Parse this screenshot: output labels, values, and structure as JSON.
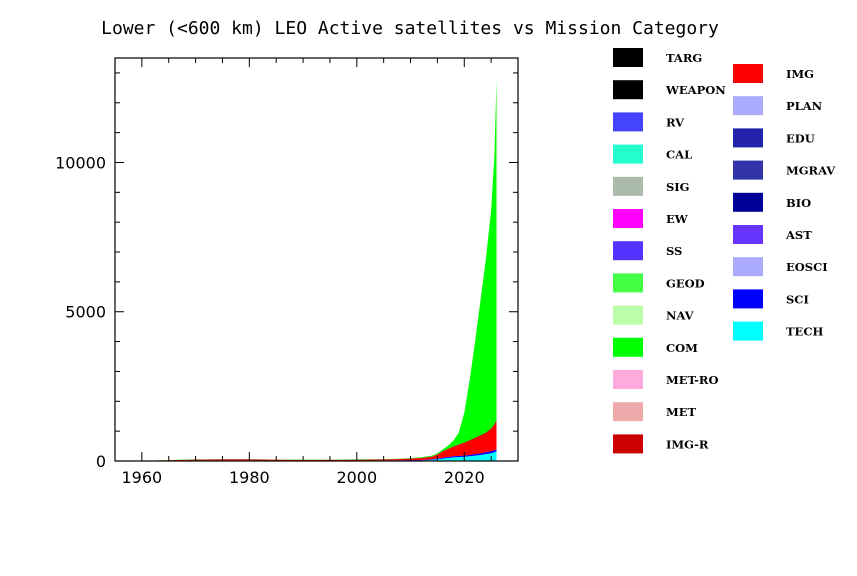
{
  "chart_data": {
    "type": "area",
    "title": "Lower (<600 km) LEO Active satellites vs Mission Category",
    "xlabel": "",
    "ylabel": "",
    "xlim": [
      1955,
      2030
    ],
    "ylim": [
      0,
      13500
    ],
    "x_ticks": [
      1960,
      1980,
      2000,
      2020
    ],
    "y_ticks": [
      0,
      5000,
      10000
    ],
    "grid": false,
    "legend_position": "right",
    "stack_order_bottom_to_top": [
      "TECH",
      "SCI",
      "EOSCI",
      "AST",
      "BIO",
      "MGRAV",
      "EDU",
      "PLAN",
      "IMG",
      "IMG-R",
      "MET",
      "MET-RO",
      "COM",
      "NAV",
      "GEOD",
      "SS",
      "EW",
      "SIG",
      "CAL",
      "RV",
      "WEAPON",
      "TARG"
    ],
    "legend": [
      {
        "name": "TARG",
        "color": "#000000"
      },
      {
        "name": "WEAPON",
        "color": "#000000"
      },
      {
        "name": "RV",
        "color": "#4444ff"
      },
      {
        "name": "CAL",
        "color": "#22ffcc"
      },
      {
        "name": "SIG",
        "color": "#aabbaa"
      },
      {
        "name": "EW",
        "color": "#ff00ff"
      },
      {
        "name": "SS",
        "color": "#5533ff"
      },
      {
        "name": "GEOD",
        "color": "#44ff44"
      },
      {
        "name": "NAV",
        "color": "#bbffaa"
      },
      {
        "name": "COM",
        "color": "#00ff00"
      },
      {
        "name": "MET-RO",
        "color": "#ffaadd"
      },
      {
        "name": "MET",
        "color": "#eeaaaa"
      },
      {
        "name": "IMG-R",
        "color": "#cc0000"
      },
      {
        "name": "IMG",
        "color": "#ff0000"
      },
      {
        "name": "PLAN",
        "color": "#aaaaff"
      },
      {
        "name": "EDU",
        "color": "#2222aa"
      },
      {
        "name": "MGRAV",
        "color": "#3333aa"
      },
      {
        "name": "BIO",
        "color": "#000099"
      },
      {
        "name": "AST",
        "color": "#6633ff"
      },
      {
        "name": "EOSCI",
        "color": "#aaaaff"
      },
      {
        "name": "SCI",
        "color": "#0000ff"
      },
      {
        "name": "TECH",
        "color": "#00ffff"
      }
    ],
    "x": [
      1957,
      1960,
      1965,
      1970,
      1975,
      1980,
      1985,
      1990,
      1995,
      2000,
      2005,
      2008,
      2010,
      2012,
      2014,
      2015,
      2016,
      2017,
      2018,
      2019,
      2020,
      2021,
      2022,
      2023,
      2024,
      2025,
      2025.6,
      2026
    ],
    "series": [
      {
        "name": "TECH",
        "values": [
          0,
          2,
          5,
          5,
          5,
          4,
          4,
          5,
          6,
          8,
          10,
          12,
          15,
          20,
          40,
          60,
          80,
          100,
          120,
          130,
          140,
          160,
          180,
          200,
          230,
          260,
          290,
          320
        ]
      },
      {
        "name": "SCI",
        "values": [
          0,
          3,
          10,
          15,
          15,
          15,
          12,
          10,
          10,
          10,
          10,
          12,
          15,
          15,
          20,
          25,
          30,
          35,
          40,
          40,
          40,
          45,
          50,
          55,
          60,
          65,
          70,
          70
        ]
      },
      {
        "name": "IMG",
        "values": [
          0,
          0,
          10,
          20,
          30,
          30,
          25,
          25,
          20,
          25,
          30,
          40,
          50,
          60,
          80,
          120,
          200,
          250,
          300,
          350,
          400,
          450,
          500,
          550,
          600,
          700,
          800,
          900
        ]
      },
      {
        "name": "IMG-R",
        "values": [
          0,
          0,
          5,
          10,
          10,
          8,
          5,
          5,
          3,
          3,
          5,
          5,
          5,
          10,
          10,
          15,
          20,
          25,
          30,
          35,
          40,
          45,
          50,
          55,
          60,
          65,
          70,
          75
        ]
      },
      {
        "name": "COM",
        "values": [
          0,
          0,
          5,
          10,
          5,
          5,
          5,
          5,
          8,
          10,
          10,
          10,
          15,
          20,
          30,
          40,
          60,
          100,
          200,
          400,
          1000,
          2000,
          3200,
          4500,
          5800,
          7300,
          9000,
          11400
        ]
      }
    ]
  }
}
